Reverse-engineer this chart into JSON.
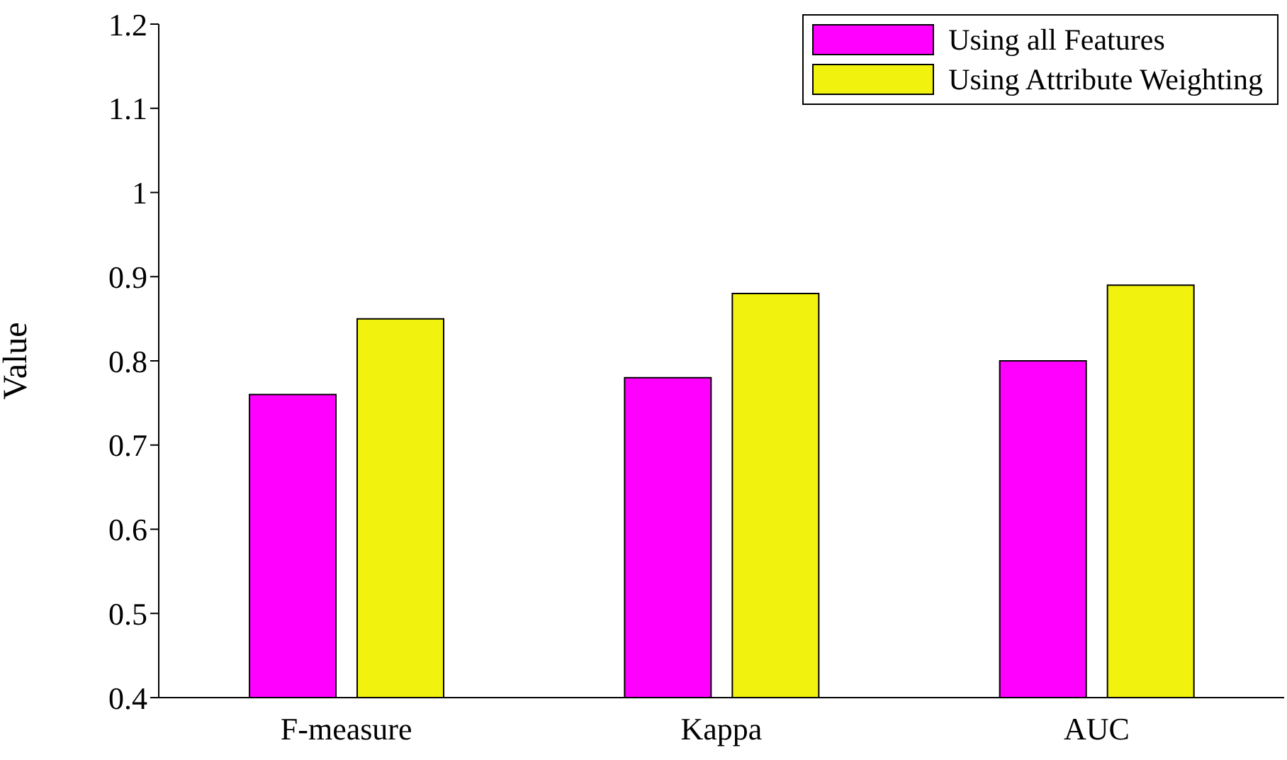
{
  "chart_data": {
    "type": "bar",
    "ylabel": "Value",
    "categories": [
      "F-measure",
      "Kappa",
      "AUC"
    ],
    "series": [
      {
        "name": "Using all Features",
        "color": "#ff00ff",
        "values": [
          0.76,
          0.78,
          0.8
        ]
      },
      {
        "name": "Using Attribute Weighting",
        "color": "#f2f20f",
        "values": [
          0.85,
          0.88,
          0.89
        ]
      }
    ],
    "ylim": [
      0.4,
      1.2
    ],
    "yticks": [
      0.4,
      0.5,
      0.6,
      0.7,
      0.8,
      0.9,
      1,
      1.1,
      1.2
    ],
    "grid": false,
    "legend": "top right"
  }
}
